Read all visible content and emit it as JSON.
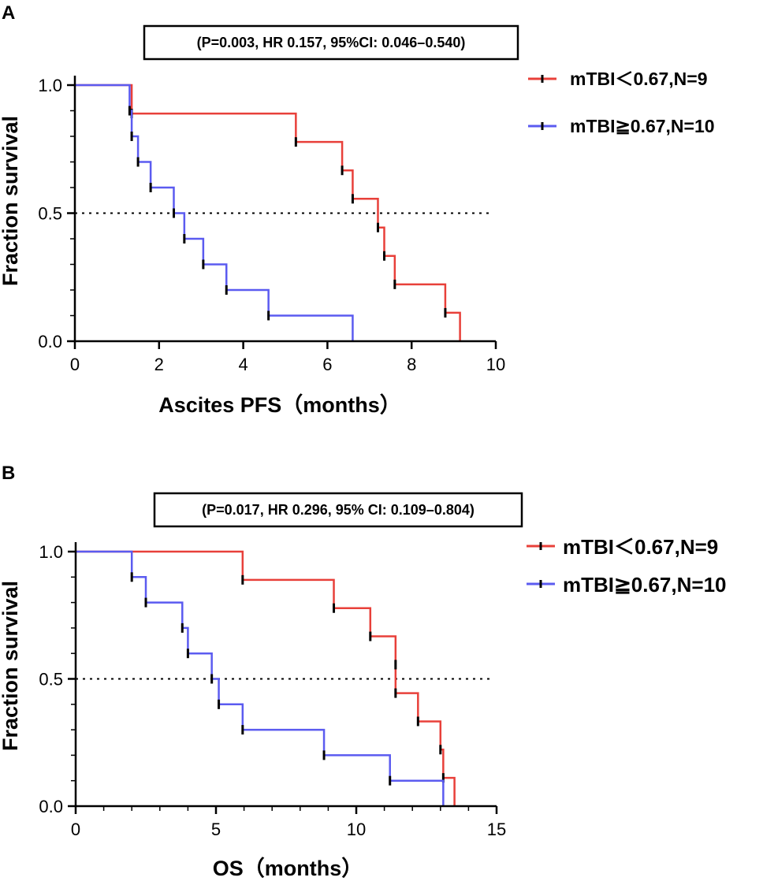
{
  "colors": {
    "red": "#e8403a",
    "blue": "#5b5bf0",
    "axis": "#000000"
  },
  "chart_data": [
    {
      "type": "line",
      "panel_label": "A",
      "title": "(P=0.003, HR 0.157, 95%CI: 0.046–0.540)",
      "xlabel": "Ascites PFS（months）",
      "ylabel": "Fraction survival",
      "xlim": [
        0,
        10
      ],
      "ylim": [
        0,
        1
      ],
      "xticks": [
        0,
        2,
        4,
        6,
        8,
        10
      ],
      "xtick_labels": [
        "0",
        "2",
        "4",
        "6",
        "8",
        "10"
      ],
      "yticks": [
        0,
        0.5,
        1
      ],
      "ytick_labels": [
        "0.0",
        "0.5",
        "1.0"
      ],
      "median_line": 0.5,
      "legend_position": "right",
      "series": [
        {
          "name": "mTBI＜0.67,N=9",
          "color": "#e8403a",
          "steps": [
            [
              0,
              1.0
            ],
            [
              1.35,
              0.889
            ],
            [
              5.25,
              0.778
            ],
            [
              6.35,
              0.667
            ],
            [
              6.6,
              0.556
            ],
            [
              7.2,
              0.444
            ],
            [
              7.35,
              0.333
            ],
            [
              7.6,
              0.222
            ],
            [
              8.8,
              0.111
            ],
            [
              9.15,
              0.0
            ]
          ],
          "end_time": 9.15,
          "censor": [
            [
              1.35,
              0.889
            ],
            [
              5.25,
              0.778
            ],
            [
              6.35,
              0.667
            ],
            [
              6.6,
              0.556
            ],
            [
              7.2,
              0.444
            ],
            [
              7.35,
              0.333
            ],
            [
              7.6,
              0.222
            ],
            [
              8.8,
              0.111
            ]
          ]
        },
        {
          "name": "mTBI≧0.67,N=10",
          "color": "#5b5bf0",
          "steps": [
            [
              0,
              1.0
            ],
            [
              1.3,
              0.9
            ],
            [
              1.35,
              0.8
            ],
            [
              1.5,
              0.7
            ],
            [
              1.8,
              0.6
            ],
            [
              2.35,
              0.5
            ],
            [
              2.6,
              0.4
            ],
            [
              3.05,
              0.3
            ],
            [
              3.6,
              0.2
            ],
            [
              4.6,
              0.1
            ],
            [
              6.6,
              0.0
            ]
          ],
          "end_time": 6.6,
          "censor": [
            [
              1.3,
              0.9
            ],
            [
              1.35,
              0.8
            ],
            [
              1.5,
              0.7
            ],
            [
              1.8,
              0.6
            ],
            [
              2.35,
              0.5
            ],
            [
              2.6,
              0.4
            ],
            [
              3.05,
              0.3
            ],
            [
              3.6,
              0.2
            ],
            [
              4.6,
              0.1
            ]
          ]
        }
      ]
    },
    {
      "type": "line",
      "panel_label": "B",
      "title": "(P=0.017, HR 0.296, 95% CI: 0.109–0.804)",
      "xlabel": "OS（months）",
      "ylabel": "Fraction survival",
      "xlim": [
        0,
        15
      ],
      "ylim": [
        0,
        1
      ],
      "xticks": [
        0,
        5,
        10,
        15
      ],
      "xtick_labels": [
        "0",
        "5",
        "10",
        "15"
      ],
      "minor_xtick_step": 1,
      "yticks": [
        0,
        0.5,
        1
      ],
      "ytick_labels": [
        "0.0",
        "0.5",
        "1.0"
      ],
      "median_line": 0.5,
      "legend_position": "right",
      "series": [
        {
          "name": "mTBI＜0.67,N=9",
          "color": "#e8403a",
          "steps": [
            [
              0,
              1.0
            ],
            [
              5.95,
              0.889
            ],
            [
              9.2,
              0.778
            ],
            [
              10.5,
              0.667
            ],
            [
              11.4,
              0.556
            ],
            [
              11.4,
              0.444
            ],
            [
              12.2,
              0.333
            ],
            [
              13.0,
              0.222
            ],
            [
              13.1,
              0.111
            ],
            [
              13.5,
              0.0
            ]
          ],
          "end_time": 13.5,
          "censor": [
            [
              5.95,
              0.889
            ],
            [
              9.2,
              0.778
            ],
            [
              10.5,
              0.667
            ],
            [
              11.4,
              0.556
            ],
            [
              11.4,
              0.444
            ],
            [
              12.2,
              0.333
            ],
            [
              13.0,
              0.222
            ],
            [
              13.1,
              0.111
            ]
          ]
        },
        {
          "name": "mTBI≧0.67,N=10",
          "color": "#5b5bf0",
          "steps": [
            [
              0,
              1.0
            ],
            [
              2.0,
              0.9
            ],
            [
              2.5,
              0.8
            ],
            [
              3.8,
              0.7
            ],
            [
              4.0,
              0.6
            ],
            [
              4.85,
              0.5
            ],
            [
              5.1,
              0.4
            ],
            [
              5.95,
              0.3
            ],
            [
              8.85,
              0.2
            ],
            [
              11.2,
              0.1
            ],
            [
              13.1,
              0.0
            ]
          ],
          "end_time": 13.1,
          "censor": [
            [
              2.0,
              0.9
            ],
            [
              2.5,
              0.8
            ],
            [
              3.8,
              0.7
            ],
            [
              4.0,
              0.6
            ],
            [
              4.85,
              0.5
            ],
            [
              5.1,
              0.4
            ],
            [
              5.95,
              0.3
            ],
            [
              8.85,
              0.2
            ],
            [
              11.2,
              0.1
            ]
          ]
        }
      ]
    }
  ]
}
